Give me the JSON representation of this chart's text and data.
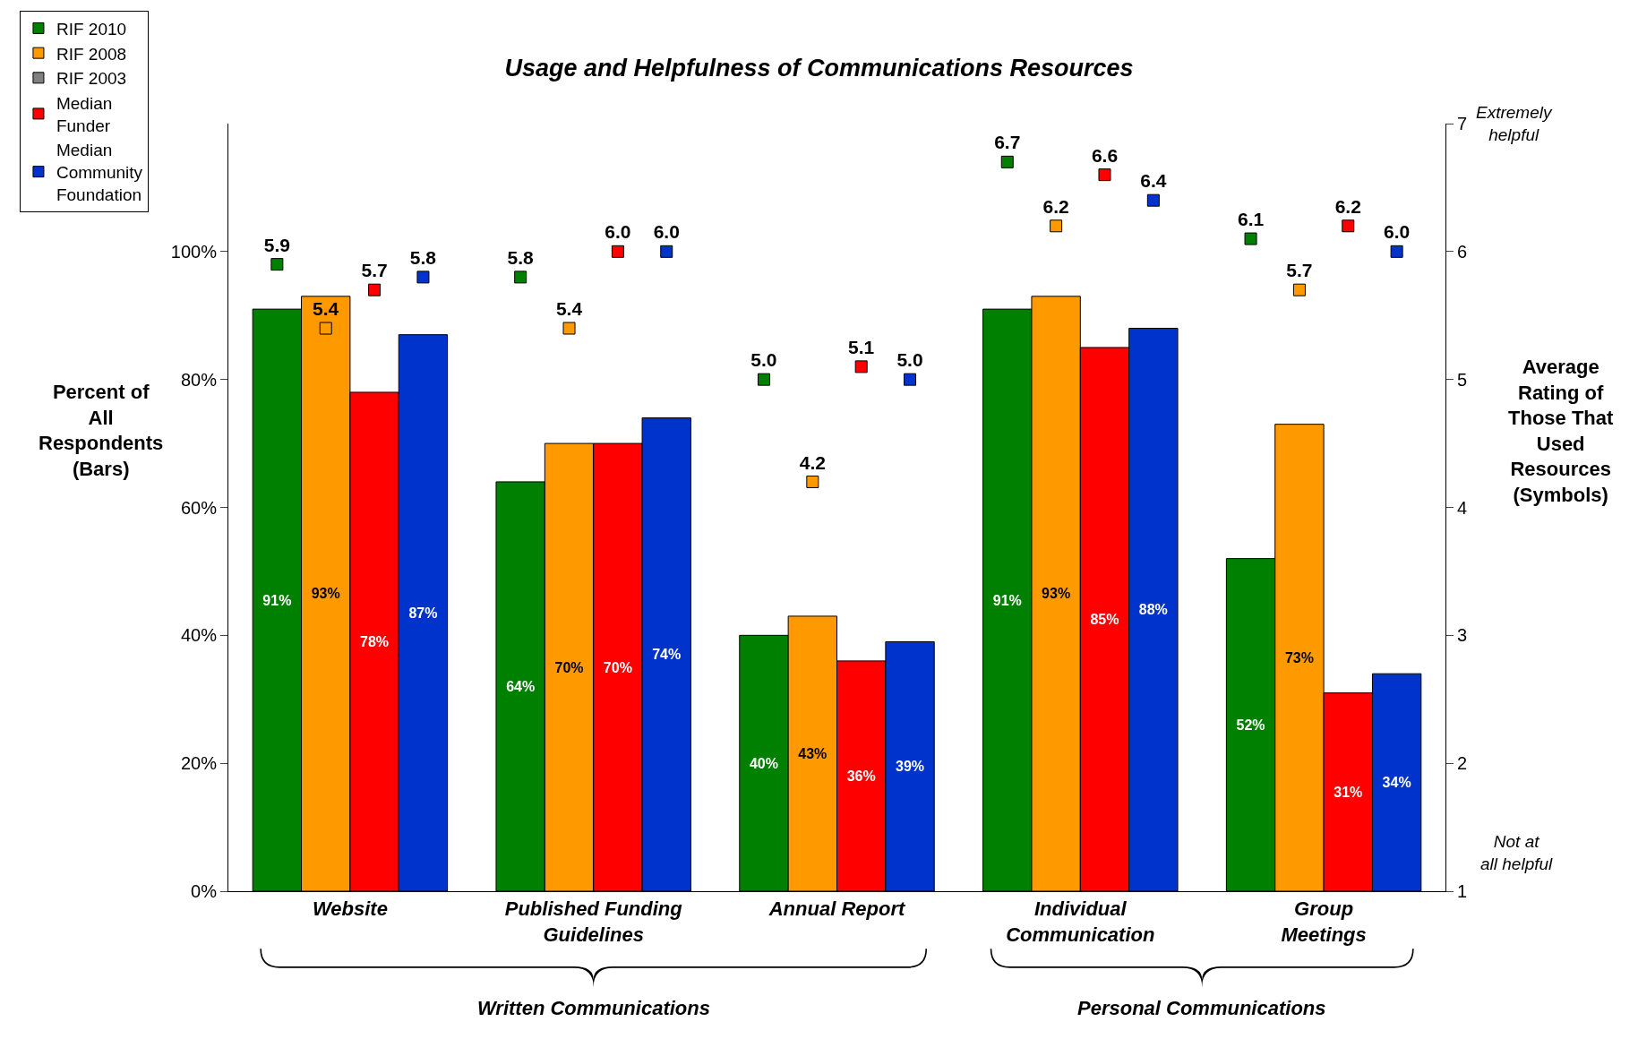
{
  "chart_data": {
    "type": "bar",
    "title": "Usage and Helpfulness of Communications Resources",
    "ylabel": "Percent of All Respondents (Bars)",
    "y2label": "Average Rating of Those That Used Resources (Symbols)",
    "categories": [
      "Website",
      "Published Funding\nGuidelines",
      "Annual Report",
      "Individual\nCommunication",
      "Group\nMeetings"
    ],
    "ylim": [
      0,
      120
    ],
    "yticks": [
      {
        "value": 0,
        "label": "0%"
      },
      {
        "value": 20,
        "label": "20%"
      },
      {
        "value": 40,
        "label": "40%"
      },
      {
        "value": 60,
        "label": "60%"
      },
      {
        "value": 80,
        "label": "80%"
      },
      {
        "value": 100,
        "label": "100%"
      }
    ],
    "y2lim": [
      1,
      7
    ],
    "y2ticks": [
      1,
      2,
      3,
      4,
      5,
      6,
      7
    ],
    "legend": "top left",
    "series": [
      {
        "name": "RIF 2010",
        "color": "#008000",
        "values": [
          91,
          64,
          40,
          91,
          52
        ],
        "value_labels": [
          "91%",
          "64%",
          "40%",
          "91%",
          "52%"
        ]
      },
      {
        "name": "RIF 2008",
        "color": "#ff9900",
        "values": [
          93,
          70,
          43,
          93,
          73
        ],
        "value_labels": [
          "93%",
          "70%",
          "43%",
          "93%",
          "73%"
        ]
      },
      {
        "name": "RIF 2003",
        "color": "#808080",
        "values": [
          null,
          null,
          null,
          null,
          null
        ]
      },
      {
        "name": "Median Funder",
        "color": "#ff0000",
        "values": [
          78,
          70,
          36,
          85,
          31
        ],
        "value_labels": [
          "78%",
          "70%",
          "36%",
          "85%",
          "31%"
        ]
      },
      {
        "name": "Median Community Foundation",
        "color": "#0033cc",
        "values": [
          87,
          74,
          39,
          88,
          34
        ],
        "value_labels": [
          "87%",
          "74%",
          "39%",
          "88%",
          "34%"
        ]
      },
      {
        "type": "scatter",
        "axis": "y2",
        "marker": "square",
        "color": "#008000",
        "values": [
          5.9,
          5.8,
          5.0,
          6.7,
          6.1
        ],
        "value_labels": [
          "5.9",
          "5.8",
          "5.0",
          "6.7",
          "6.1"
        ]
      },
      {
        "type": "scatter",
        "axis": "y2",
        "marker": "square",
        "color": "#ff9900",
        "values": [
          5.4,
          5.4,
          4.2,
          6.2,
          5.7
        ],
        "value_labels": [
          "5.4",
          "5.4",
          "4.2",
          "6.2",
          "5.7"
        ]
      },
      {
        "type": "scatter",
        "axis": "y2",
        "marker": "square",
        "color": "#ff0000",
        "values": [
          5.7,
          6.0,
          5.1,
          6.6,
          6.2
        ],
        "value_labels": [
          "5.7",
          "6.0",
          "5.1",
          "6.6",
          "6.2"
        ]
      },
      {
        "type": "scatter",
        "axis": "y2",
        "marker": "square",
        "color": "#0033cc",
        "values": [
          5.8,
          6.0,
          5.0,
          6.4,
          6.0
        ],
        "value_labels": [
          "5.8",
          "6.0",
          "5.0",
          "6.4",
          "6.0"
        ]
      }
    ],
    "annotations": [
      "Extremely\nhelpful",
      "Not at\nall helpful",
      "Written Communications",
      "Personal Communications"
    ]
  }
}
